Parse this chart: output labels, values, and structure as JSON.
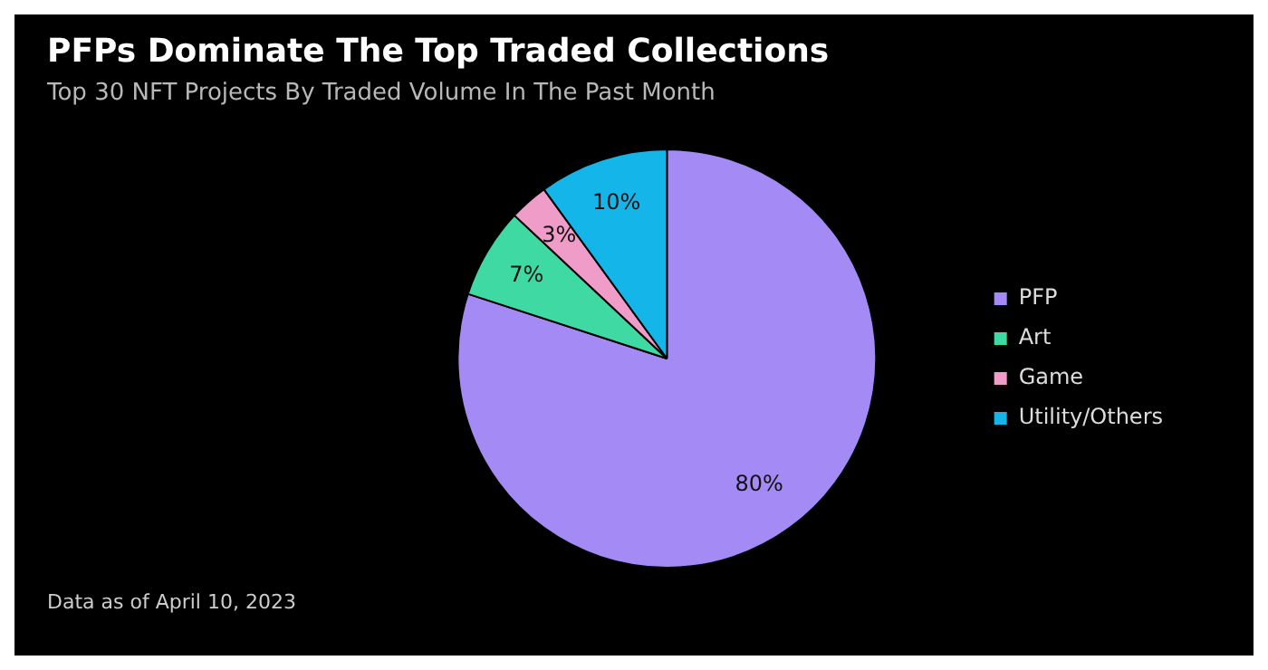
{
  "chart_data": {
    "type": "pie",
    "title": "PFPs Dominate The Top Traded Collections",
    "subtitle": "Top 30 NFT Projects By Traded Volume In The Past Month",
    "categories": [
      "PFP",
      "Art",
      "Game",
      "Utility/Others"
    ],
    "values": [
      80,
      7,
      3,
      10
    ],
    "colors": [
      "#a48af5",
      "#3fd9a3",
      "#f09cc8",
      "#14b6ea"
    ],
    "value_labels": [
      "80%",
      "7%",
      "3%",
      "10%"
    ],
    "legend": "right",
    "annotations": [
      "Data as of April 10, 2023"
    ]
  }
}
